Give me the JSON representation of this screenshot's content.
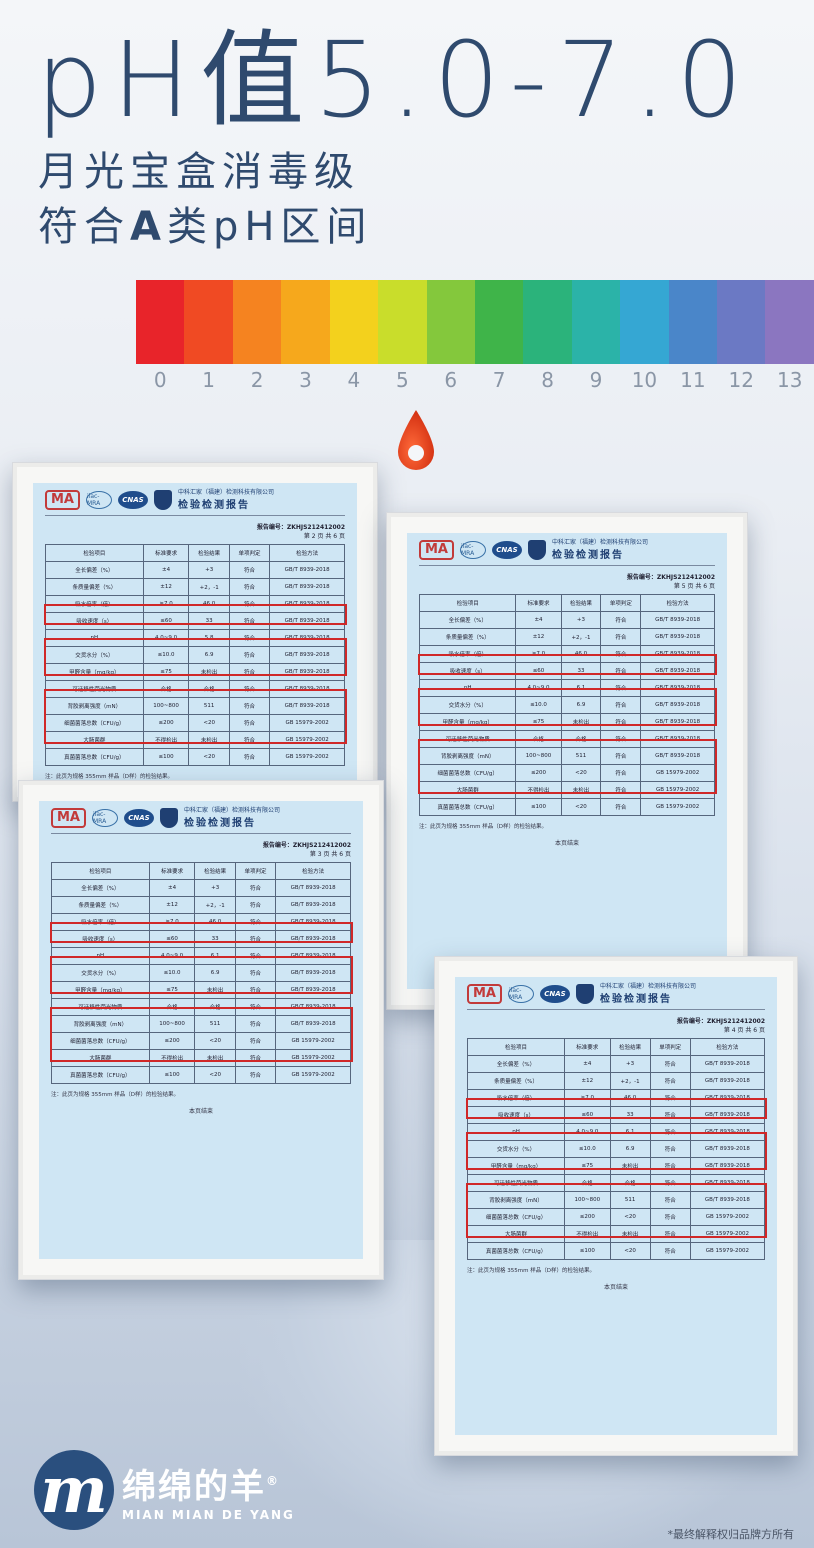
{
  "hero": {
    "title": "pH值5.0-7.0",
    "line1": "月光宝盒消毒级",
    "line2_pre": "符合",
    "line2_bold": "A",
    "line2_post": "类pH区间"
  },
  "ph_scale": {
    "labels": [
      "0",
      "1",
      "2",
      "3",
      "4",
      "5",
      "6",
      "7",
      "8",
      "9",
      "10",
      "11",
      "12",
      "13"
    ],
    "colors": [
      "#e8242a",
      "#f04a23",
      "#f58320",
      "#f6a81c",
      "#f3d11d",
      "#c9dd2b",
      "#84c83c",
      "#3fb449",
      "#2bb37b",
      "#2bb3a8",
      "#35a7d3",
      "#4a86c9",
      "#6b79c4",
      "#8b76c0"
    ]
  },
  "report": {
    "ma": "MA",
    "ilac": "ilac-MRA",
    "cnas": "CNAS",
    "org": "中科汇家（福建）检测科技有限公司",
    "title": "检验检测报告",
    "report_no": "报告编号：ZKHJS212412002",
    "pages": [
      "第 2 页 共 6 页",
      "第 5 页 共 6 页",
      "第 3 页 共 6 页",
      "第 4 页 共 6 页"
    ],
    "headers": [
      "检验项目",
      "标准要求",
      "检验结果",
      "单项判定",
      "检验方法"
    ],
    "rows": [
      [
        "全长偏差（%）",
        "±4",
        "+3",
        "符合",
        "GB/T 8939-2018"
      ],
      [
        "条质量偏差（%）",
        "±12",
        "+2，-1",
        "符合",
        "GB/T 8939-2018"
      ],
      [
        "吸水倍率（倍）",
        "≥7.0",
        "46.0",
        "符合",
        "GB/T 8939-2018"
      ],
      [
        "吸收速度（s）",
        "≤60",
        "33",
        "符合",
        "GB/T 8939-2018"
      ],
      [
        "pH",
        "4.0~9.0",
        "5.8",
        "符合",
        "GB/T 8939-2018"
      ],
      [
        "交货水分（%）",
        "≤10.0",
        "6.9",
        "符合",
        "GB/T 8939-2018"
      ],
      [
        "甲醛含量（mg/kg）",
        "≤75",
        "未检出",
        "符合",
        "GB/T 8939-2018"
      ],
      [
        "可迁移性荧光物质",
        "合格",
        "合格",
        "符合",
        "GB/T 8939-2018"
      ],
      [
        "背胶剥离强度（mN）",
        "100~800",
        "511",
        "符合",
        "GB/T 8939-2018"
      ],
      [
        "细菌菌落总数（CFU/g）",
        "≤200",
        "<20",
        "符合",
        "GB 15979-2002"
      ],
      [
        "大肠菌群",
        "不得检出",
        "未检出",
        "符合",
        "GB 15979-2002"
      ],
      [
        "真菌菌落总数（CFU/g）",
        "≤100",
        "<20",
        "符合",
        "GB 15979-2002"
      ]
    ],
    "ph_values": [
      "5.8",
      "6.1",
      "6.1",
      "6.1"
    ],
    "footer": "注：此页为规格 355mm 样品（D样）的检验结果。",
    "end": "本页结束"
  },
  "brand": {
    "mark": "m",
    "name_cn": "绵绵的羊",
    "reg": "®",
    "name_en": "MIAN MIAN DE YANG"
  },
  "note": "*最终解释权归品牌方所有"
}
